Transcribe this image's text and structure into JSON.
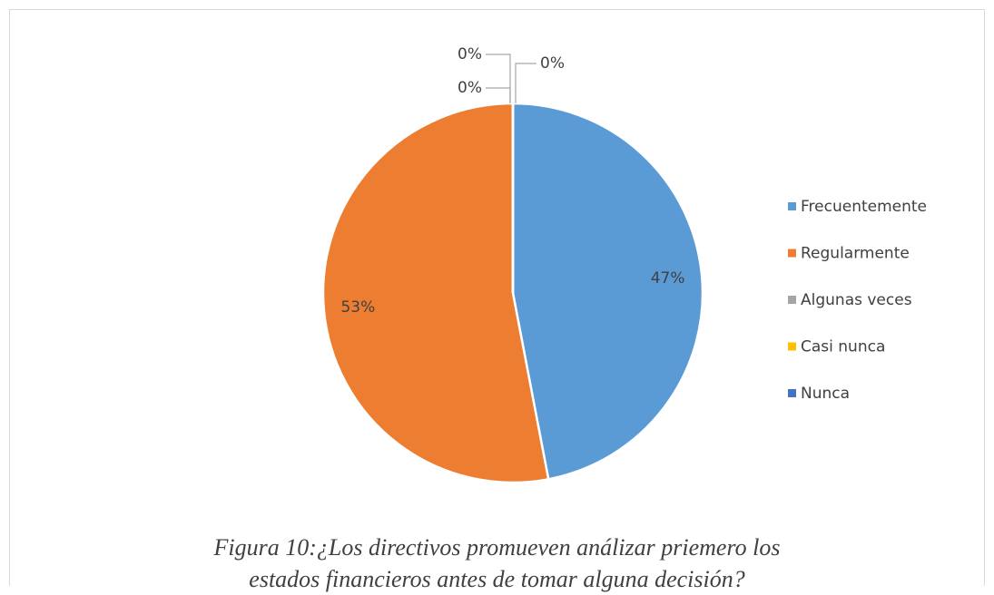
{
  "chart_data": {
    "type": "pie",
    "title": "Figura 10:¿Los directivos promueven análizar priemero los estados financieros antes de tomar alguna decisión?",
    "categories": [
      "Frecuentemente",
      "Regularmente",
      "Algunas veces",
      "Casi nunca",
      "Nunca"
    ],
    "values": [
      47,
      53,
      0,
      0,
      0
    ],
    "value_labels": [
      "47%",
      "53%",
      "0%",
      "0%",
      "0%"
    ],
    "colors": [
      "#5b9bd5",
      "#ed7d31",
      "#a5a5a5",
      "#ffc000",
      "#4472c4"
    ],
    "legend": "right"
  }
}
